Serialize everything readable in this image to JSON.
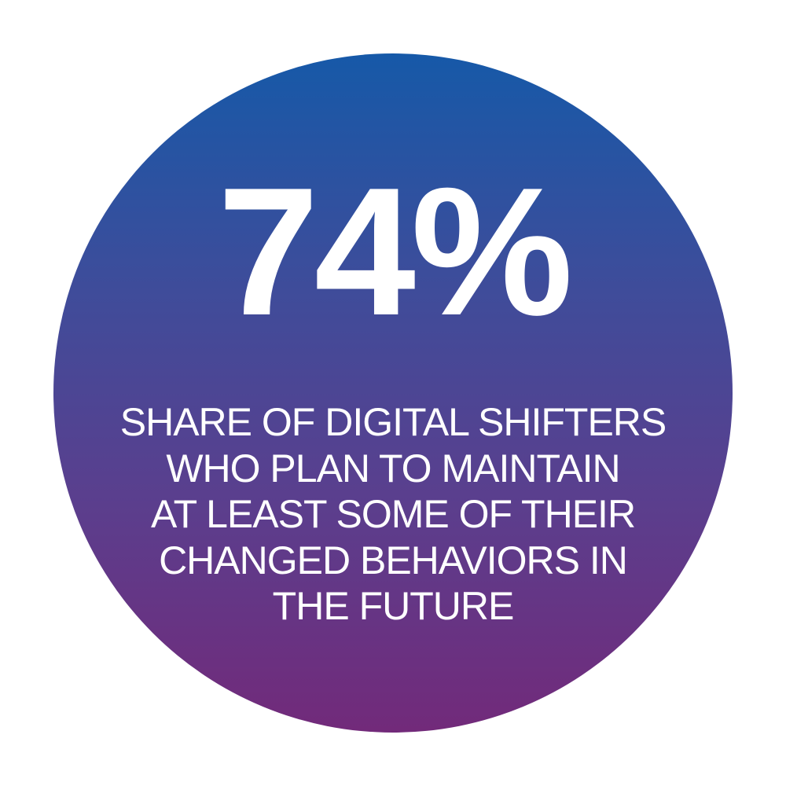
{
  "colors": {
    "gradient_top": "#1659a8",
    "gradient_bottom": "#722a7a",
    "text": "#ffffff"
  },
  "stat": {
    "value": "74%"
  },
  "caption": {
    "lines": [
      "SHARE OF DIGITAL SHIFTERS",
      "WHO PLAN TO MAINTAIN",
      "AT LEAST SOME OF THEIR",
      "CHANGED BEHAVIORS IN",
      "THE FUTURE"
    ]
  }
}
